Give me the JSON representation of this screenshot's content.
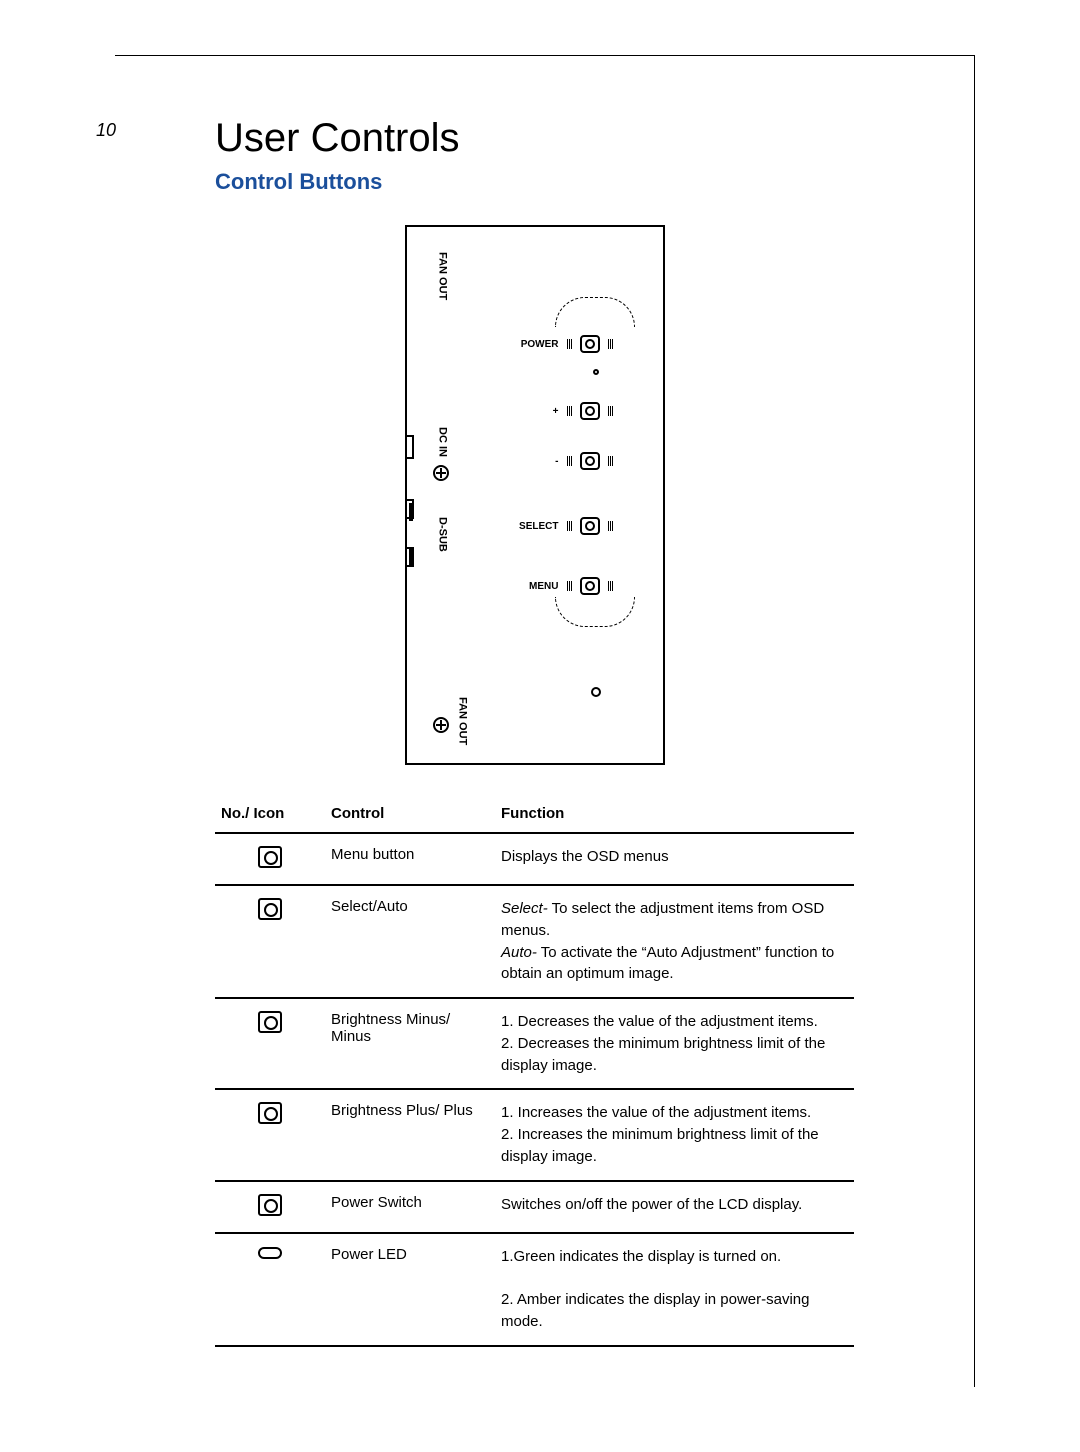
{
  "page_number": "10",
  "title": "User Controls",
  "subtitle": "Control Buttons",
  "subtitle_color": "#1b4f9b",
  "diagram": {
    "side_labels": {
      "fan_out_top": "FAN OUT",
      "dc_in": "DC IN",
      "d_sub": "D-SUB",
      "fan_out_bottom": "FAN OUT"
    },
    "button_labels": {
      "power": "POWER",
      "plus": "+",
      "minus": "-",
      "select": "SELECT",
      "menu": "MENU"
    }
  },
  "table": {
    "headers": {
      "icon": "No./ Icon",
      "control": "Control",
      "function": "Function"
    },
    "rows": [
      {
        "icon_type": "button",
        "control": "Menu button",
        "function_html": "Displays the OSD menus"
      },
      {
        "icon_type": "button",
        "control": "Select/Auto",
        "function_html": "<span class='it'>Select-</span> To select the adjustment items from OSD menus.<br><span class='it'>Auto-</span> To activate the “Auto Adjustment” function to obtain an optimum image."
      },
      {
        "icon_type": "button",
        "control": "Brightness Minus/ Minus",
        "function_html": "1. Decreases the value of the adjustment items.<br>2. Decreases the minimum brightness limit of the display image."
      },
      {
        "icon_type": "button",
        "control": "Brightness Plus/ Plus",
        "function_html": "1. Increases the value of the adjustment items.<br>2. Increases the minimum brightness limit of the display image."
      },
      {
        "icon_type": "button",
        "control": "Power Switch",
        "function_html": "Switches on/off the power of the LCD display."
      },
      {
        "icon_type": "led",
        "control": "Power LED",
        "function_html": "1.Green indicates the display is turned on.<br><br>2. Amber indicates the display in power-saving mode."
      }
    ]
  }
}
